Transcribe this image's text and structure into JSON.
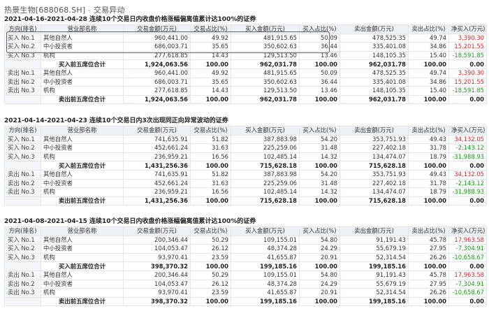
{
  "page": {
    "title": "热景生物[688068.SH]",
    "separator": " - ",
    "subtitle": "交易异动"
  },
  "headers": [
    "方向(排名)",
    "营业部名称",
    "交易金额(万元)",
    "交易占比(%)",
    "买入金额(万元)",
    "买入占比(%)",
    "卖出金额(万元)",
    "卖出占比(%)",
    "净买入(万元)"
  ],
  "sections": [
    {
      "title": "2021-04-16-2021-04-28 连续10个交易日内收盘价格涨幅偏离值累计达100%的证券",
      "rows": [
        {
          "dir": "买入 No.1",
          "name": "其他自然人",
          "amount": "960,441.00",
          "amount_pct": "49.92",
          "buy": "481,915.65",
          "buy_pct": "50.09",
          "sell": "478,525.35",
          "sell_pct": "49.74",
          "net": "3,390.30",
          "sign": "pos"
        },
        {
          "dir": "买入 No.2",
          "name": "中小投资者",
          "amount": "686,003.71",
          "amount_pct": "35.65",
          "buy": "350,602.63",
          "buy_pct": "36.44",
          "sell": "335,401.08",
          "sell_pct": "34.86",
          "net": "15,201.55",
          "sign": "pos"
        },
        {
          "dir": "买入 No.3",
          "name": "机构",
          "amount": "277,618.85",
          "amount_pct": "14.43",
          "buy": "129,513.50",
          "buy_pct": "13.46",
          "sell": "148,105.35",
          "sell_pct": "15.40",
          "net": "-18,591.85",
          "sign": "neg"
        },
        {
          "dir": "",
          "name": "买入前五席位合计",
          "amount": "1,924,063.56",
          "amount_pct": "100.00",
          "buy": "962,031.78",
          "buy_pct": "100.00",
          "sell": "962,031.78",
          "sell_pct": "100.00",
          "net": "0.00",
          "sign": "zero",
          "total": true
        },
        {
          "dir": "卖出 No.1",
          "name": "其他自然人",
          "amount": "960,441.00",
          "amount_pct": "49.92",
          "buy": "481,915.65",
          "buy_pct": "50.09",
          "sell": "478,525.35",
          "sell_pct": "49.74",
          "net": "3,390.30",
          "sign": "pos"
        },
        {
          "dir": "卖出 No.2",
          "name": "中小投资者",
          "amount": "686,003.71",
          "amount_pct": "35.65",
          "buy": "350,602.63",
          "buy_pct": "36.44",
          "sell": "335,401.08",
          "sell_pct": "34.86",
          "net": "15,201.55",
          "sign": "pos"
        },
        {
          "dir": "卖出 No.3",
          "name": "机构",
          "amount": "277,618.85",
          "amount_pct": "14.43",
          "buy": "129,513.50",
          "buy_pct": "13.46",
          "sell": "148,105.35",
          "sell_pct": "15.40",
          "net": "-18,591.85",
          "sign": "neg"
        },
        {
          "dir": "",
          "name": "卖出前五席位合计",
          "amount": "1,924,063.56",
          "amount_pct": "100.00",
          "buy": "962,031.78",
          "buy_pct": "100.00",
          "sell": "962,031.78",
          "sell_pct": "100.00",
          "net": "0.00",
          "sign": "zero",
          "total": true
        }
      ]
    },
    {
      "title": "2021-04-14-2021-04-23 连续10个交易日内3次出现同正向异常波动的证券",
      "rows": [
        {
          "dir": "买入 No.1",
          "name": "其他自然人",
          "amount": "741,635.91",
          "amount_pct": "51.82",
          "buy": "387,883.98",
          "buy_pct": "54.20",
          "sell": "353,751.93",
          "sell_pct": "49.43",
          "net": "34,132.05",
          "sign": "pos"
        },
        {
          "dir": "买入 No.2",
          "name": "中小投资者",
          "amount": "452,661.24",
          "amount_pct": "31.63",
          "buy": "225,259.06",
          "buy_pct": "31.48",
          "sell": "227,402.18",
          "sell_pct": "31.78",
          "net": "-2,143.12",
          "sign": "neg"
        },
        {
          "dir": "买入 No.3",
          "name": "机构",
          "amount": "236,959.21",
          "amount_pct": "16.56",
          "buy": "102,485.14",
          "buy_pct": "14.32",
          "sell": "134,474.07",
          "sell_pct": "18.79",
          "net": "-31,988.93",
          "sign": "neg"
        },
        {
          "dir": "",
          "name": "买入前五席位合计",
          "amount": "1,431,256.36",
          "amount_pct": "100.00",
          "buy": "715,628.18",
          "buy_pct": "100.00",
          "sell": "715,628.18",
          "sell_pct": "100.00",
          "net": "0.00",
          "sign": "zero",
          "total": true
        },
        {
          "dir": "卖出 No.1",
          "name": "其他自然人",
          "amount": "741,635.91",
          "amount_pct": "51.82",
          "buy": "387,883.98",
          "buy_pct": "54.20",
          "sell": "353,751.93",
          "sell_pct": "49.43",
          "net": "34,132.05",
          "sign": "pos"
        },
        {
          "dir": "卖出 No.2",
          "name": "中小投资者",
          "amount": "452,661.24",
          "amount_pct": "31.63",
          "buy": "225,259.06",
          "buy_pct": "31.48",
          "sell": "227,402.18",
          "sell_pct": "31.78",
          "net": "-2,143.12",
          "sign": "neg"
        },
        {
          "dir": "卖出 No.3",
          "name": "机构",
          "amount": "236,959.21",
          "amount_pct": "16.56",
          "buy": "102,485.14",
          "buy_pct": "14.32",
          "sell": "134,474.07",
          "sell_pct": "18.79",
          "net": "-31,988.93",
          "sign": "neg"
        },
        {
          "dir": "",
          "name": "卖出前五席位合计",
          "amount": "1,431,256.36",
          "amount_pct": "100.00",
          "buy": "715,628.18",
          "buy_pct": "100.00",
          "sell": "715,628.18",
          "sell_pct": "100.00",
          "net": "0.00",
          "sign": "zero",
          "total": true
        }
      ]
    },
    {
      "title": "2021-04-08-2021-04-15 连续10个交易日内收盘价格涨幅偏离值累计达100%的证券",
      "rows": [
        {
          "dir": "买入 No.1",
          "name": "其他自然人",
          "amount": "200,346.44",
          "amount_pct": "50.29",
          "buy": "109,155.01",
          "buy_pct": "54.80",
          "sell": "91,191.43",
          "sell_pct": "45.78",
          "net": "17,963.58",
          "sign": "pos"
        },
        {
          "dir": "买入 No.2",
          "name": "中小投资者",
          "amount": "104,053.47",
          "amount_pct": "26.12",
          "buy": "48,374.28",
          "buy_pct": "24.29",
          "sell": "55,679.19",
          "sell_pct": "27.95",
          "net": "-7,304.91",
          "sign": "neg"
        },
        {
          "dir": "买入 No.3",
          "name": "机构",
          "amount": "93,970.41",
          "amount_pct": "23.59",
          "buy": "41,655.87",
          "buy_pct": "20.91",
          "sell": "52,314.54",
          "sell_pct": "26.26",
          "net": "-10,658.67",
          "sign": "neg"
        },
        {
          "dir": "",
          "name": "买入前五席位合计",
          "amount": "398,370.32",
          "amount_pct": "100.00",
          "buy": "199,185.16",
          "buy_pct": "100.00",
          "sell": "199,185.16",
          "sell_pct": "100.00",
          "net": "0.00",
          "sign": "zero",
          "total": true
        },
        {
          "dir": "卖出 No.1",
          "name": "其他自然人",
          "amount": "200,346.44",
          "amount_pct": "50.29",
          "buy": "109,155.01",
          "buy_pct": "54.80",
          "sell": "91,191.43",
          "sell_pct": "45.78",
          "net": "17,963.58",
          "sign": "pos"
        },
        {
          "dir": "卖出 No.2",
          "name": "中小投资者",
          "amount": "104,053.47",
          "amount_pct": "26.12",
          "buy": "48,374.28",
          "buy_pct": "24.29",
          "sell": "55,679.19",
          "sell_pct": "27.95",
          "net": "-7,304.91",
          "sign": "neg"
        },
        {
          "dir": "卖出 No.3",
          "name": "机构",
          "amount": "93,970.41",
          "amount_pct": "23.59",
          "buy": "41,655.87",
          "buy_pct": "20.91",
          "sell": "52,314.54",
          "sell_pct": "26.26",
          "net": "-10,658.67",
          "sign": "neg"
        },
        {
          "dir": "",
          "name": "卖出前五席位合计",
          "amount": "398,370.32",
          "amount_pct": "100.00",
          "buy": "199,185.16",
          "buy_pct": "100.00",
          "sell": "199,185.16",
          "sell_pct": "100.00",
          "net": "0.00",
          "sign": "zero",
          "total": true
        }
      ]
    }
  ],
  "colors": {
    "positive": "#e02424",
    "negative": "#11a111",
    "highlight_border": "#e8302a",
    "header_bg": "#eef1f5"
  }
}
